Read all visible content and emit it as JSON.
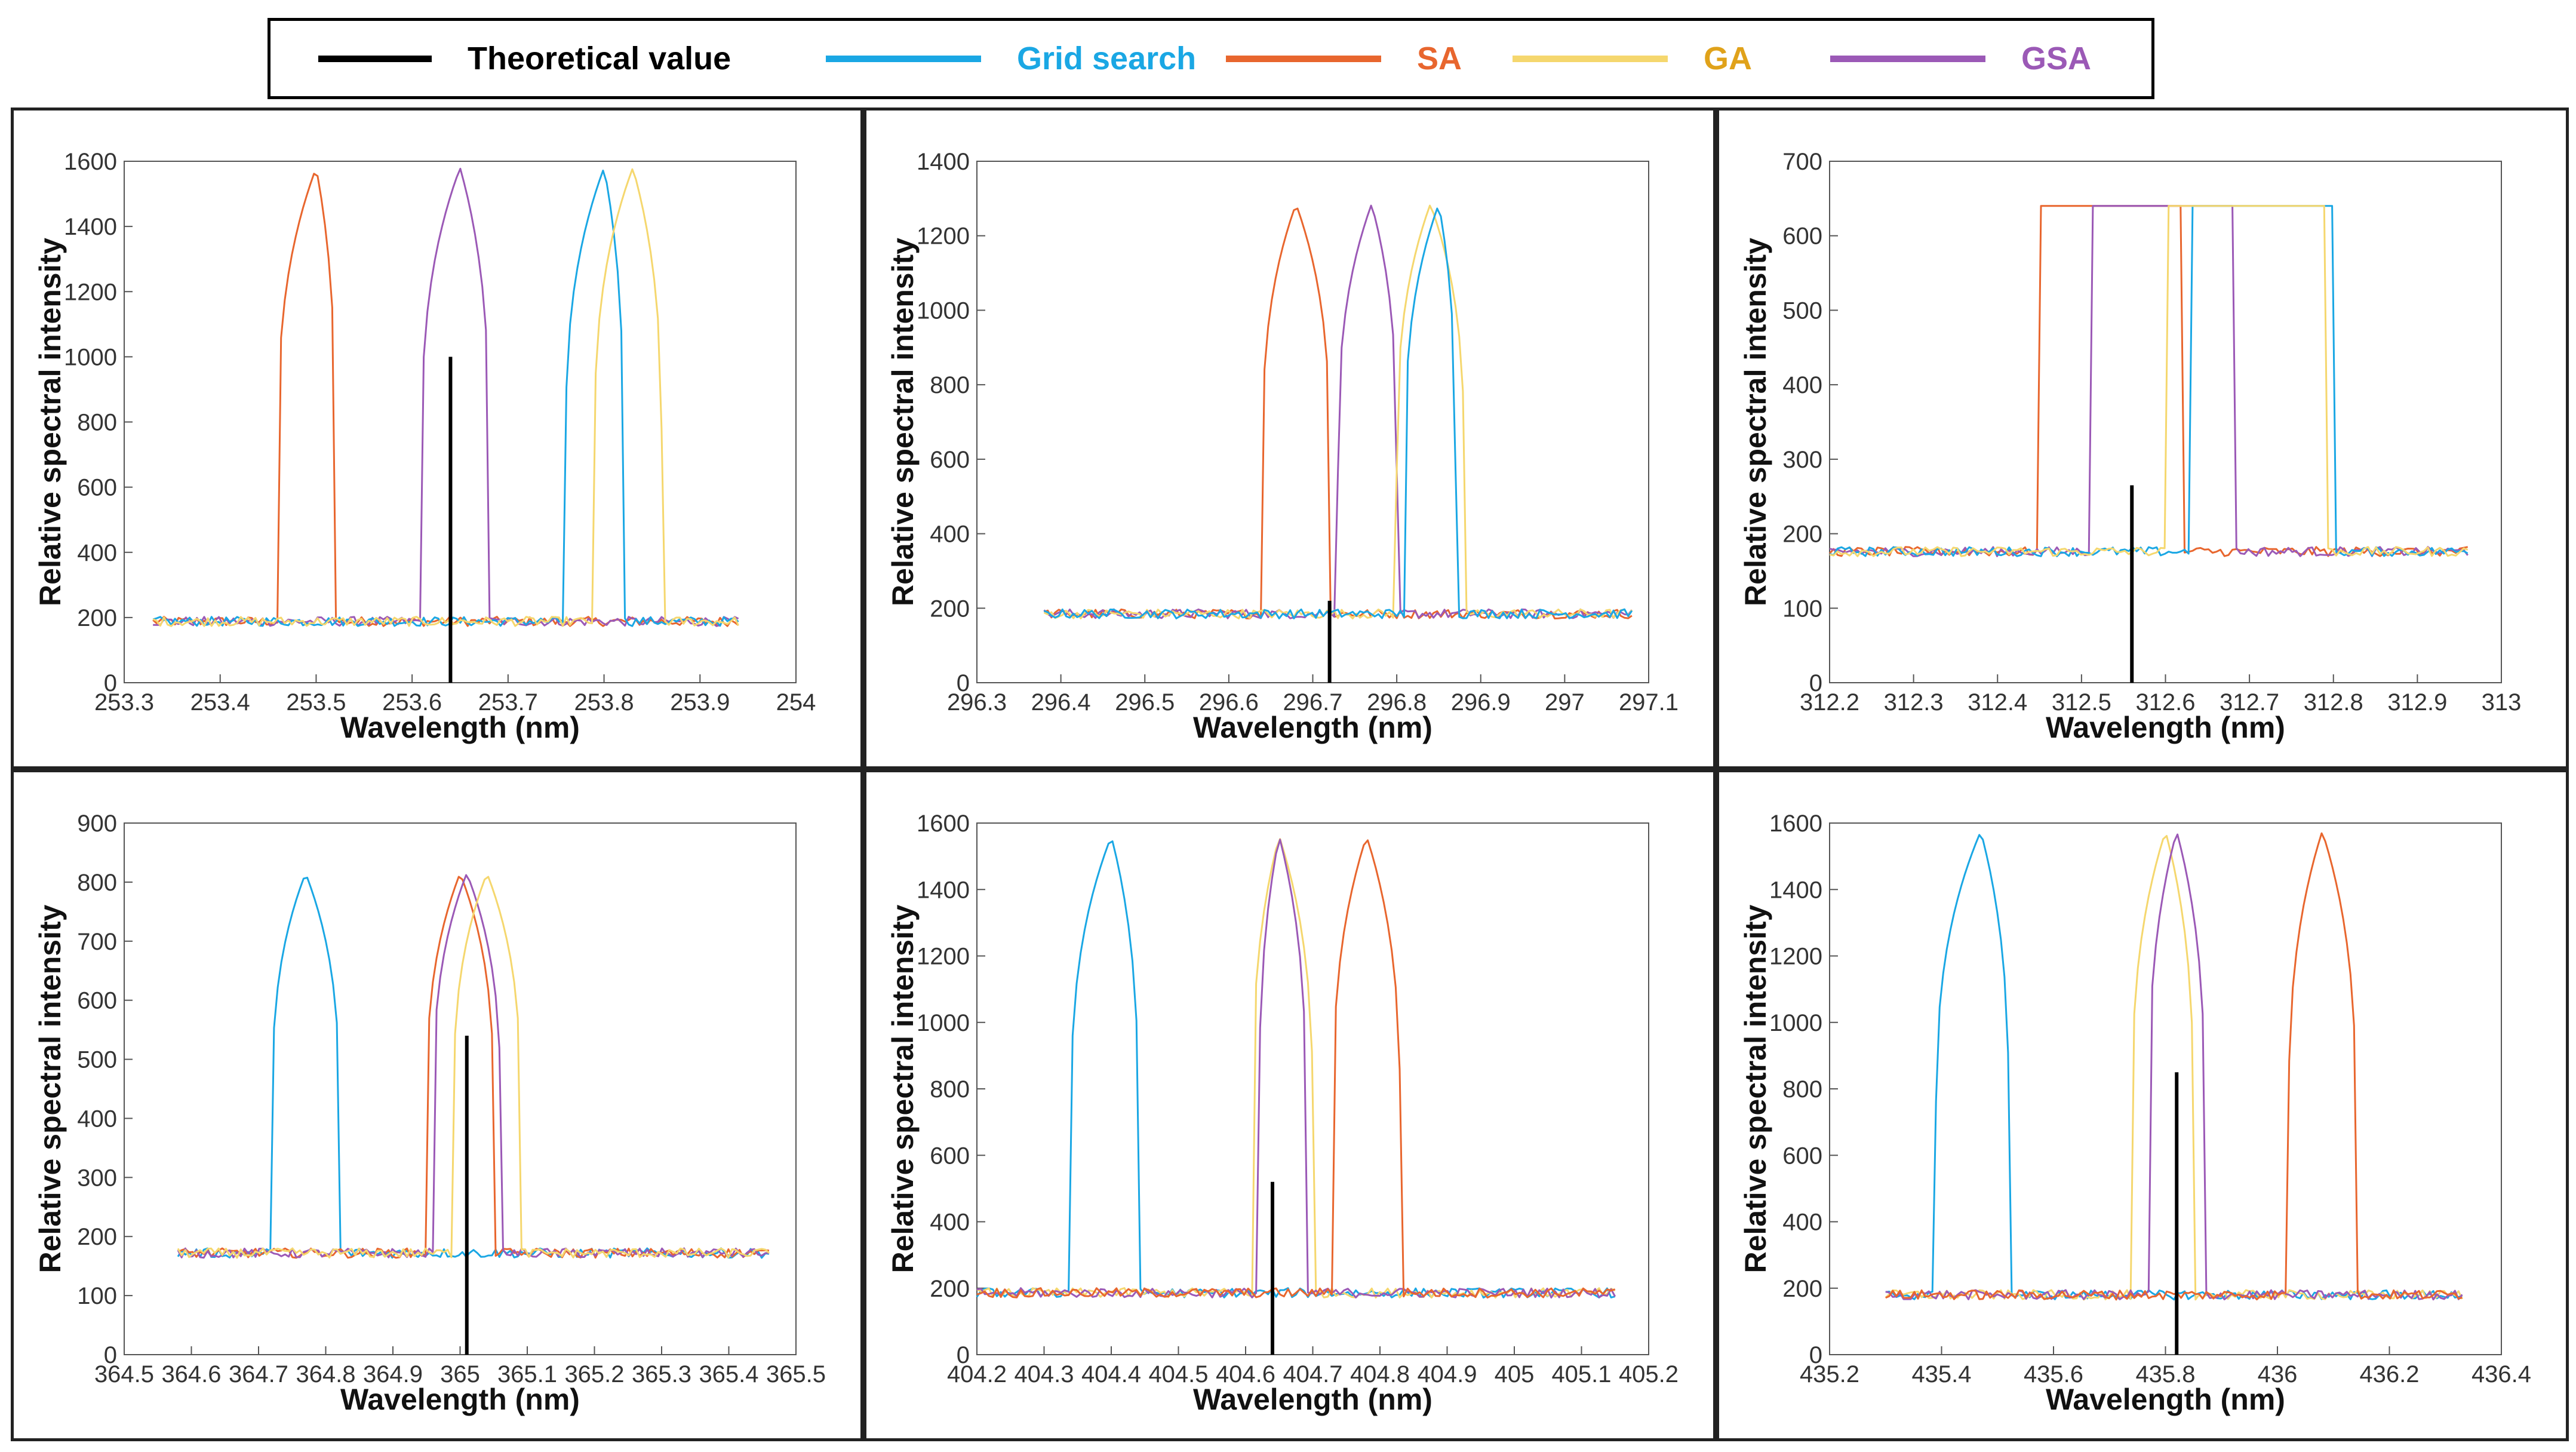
{
  "legend": {
    "items": [
      {
        "label": "Theoretical value",
        "color": "#000000",
        "text_color": "#000000"
      },
      {
        "label": "Grid search",
        "color": "#1aa7e4",
        "text_color": "#1aa7e4"
      },
      {
        "label": "SA",
        "color": "#e8662e",
        "text_color": "#e8662e"
      },
      {
        "label": "GA",
        "color": "#f5d76e",
        "text_color": "#e0a21a"
      },
      {
        "label": "GSA",
        "color": "#9b59b6",
        "text_color": "#9b59b6"
      }
    ]
  },
  "chart_data": [
    {
      "type": "line",
      "xlabel": "Wavelength (nm)",
      "ylabel": "Relative spectral intensity",
      "xlim": [
        253.3,
        254
      ],
      "xticks": [
        253.3,
        253.4,
        253.5,
        253.6,
        253.7,
        253.8,
        253.9,
        254
      ],
      "ylim": [
        0,
        1600
      ],
      "yticks": [
        0,
        200,
        400,
        600,
        800,
        1000,
        1200,
        1400,
        1600
      ],
      "baseline": 188,
      "data_range": [
        253.33,
        253.94
      ],
      "theoretical": {
        "x": 253.64,
        "y": 1000
      },
      "series": [
        {
          "name": "SA",
          "center": 253.5,
          "peak": 1580,
          "start": 253.46,
          "end": 253.52
        },
        {
          "name": "GSA",
          "center": 253.65,
          "peak": 1580,
          "start": 253.61,
          "end": 253.68
        },
        {
          "name": "Grid search",
          "center": 253.8,
          "peak": 1580,
          "start": 253.76,
          "end": 253.82
        },
        {
          "name": "GA",
          "center": 253.83,
          "peak": 1580,
          "start": 253.79,
          "end": 253.86
        }
      ]
    },
    {
      "type": "line",
      "xlabel": "Wavelength (nm)",
      "ylabel": "Relative spectral intensity",
      "xlim": [
        296.3,
        297.1
      ],
      "xticks": [
        296.3,
        296.4,
        296.5,
        296.6,
        296.7,
        296.8,
        296.9,
        297,
        297.1
      ],
      "ylim": [
        0,
        1400
      ],
      "yticks": [
        0,
        200,
        400,
        600,
        800,
        1000,
        1200,
        1400
      ],
      "baseline": 185,
      "data_range": [
        296.38,
        297.08
      ],
      "theoretical": {
        "x": 296.72,
        "y": 220
      },
      "series": [
        {
          "name": "SA",
          "center": 296.68,
          "peak": 1285,
          "start": 296.64,
          "end": 296.72
        },
        {
          "name": "GSA",
          "center": 296.77,
          "peak": 1285,
          "start": 296.73,
          "end": 296.8
        },
        {
          "name": "GA",
          "center": 296.84,
          "peak": 1285,
          "start": 296.8,
          "end": 296.88
        },
        {
          "name": "Grid search",
          "center": 296.85,
          "peak": 1285,
          "start": 296.81,
          "end": 296.87
        }
      ]
    },
    {
      "type": "line",
      "xlabel": "Wavelength (nm)",
      "ylabel": "Relative spectral intensity",
      "xlim": [
        312.2,
        313
      ],
      "xticks": [
        312.2,
        312.3,
        312.4,
        312.5,
        312.6,
        312.7,
        312.8,
        312.9,
        313
      ],
      "ylim": [
        0,
        700
      ],
      "yticks": [
        0,
        100,
        200,
        300,
        400,
        500,
        600,
        700
      ],
      "baseline": 176,
      "data_range": [
        312.2,
        312.96
      ],
      "theoretical": {
        "x": 312.56,
        "y": 265
      },
      "series": [
        {
          "name": "SA",
          "shape": "box",
          "peak": 640,
          "start": 312.45,
          "end": 312.62
        },
        {
          "name": "GSA",
          "shape": "box",
          "peak": 640,
          "start": 312.51,
          "end": 312.68
        },
        {
          "name": "Grid search",
          "shape": "box",
          "peak": 640,
          "start": 312.63,
          "end": 312.8
        },
        {
          "name": "GA",
          "shape": "box",
          "peak": 640,
          "start": 312.6,
          "end": 312.79
        }
      ]
    },
    {
      "type": "line",
      "xlabel": "Wavelength (nm)",
      "ylabel": "Relative spectral intensity",
      "xlim": [
        364.5,
        365.5
      ],
      "xticks": [
        364.5,
        364.6,
        364.7,
        364.8,
        364.9,
        365,
        365.1,
        365.2,
        365.3,
        365.4,
        365.5
      ],
      "ylim": [
        0,
        900
      ],
      "yticks": [
        0,
        100,
        200,
        300,
        400,
        500,
        600,
        700,
        800,
        900
      ],
      "baseline": 172,
      "data_range": [
        364.58,
        365.46
      ],
      "theoretical": {
        "x": 365.01,
        "y": 540
      },
      "series": [
        {
          "name": "Grid search",
          "center": 364.77,
          "peak": 815,
          "start": 364.72,
          "end": 364.82
        },
        {
          "name": "SA",
          "center": 365.0,
          "peak": 815,
          "start": 364.95,
          "end": 365.05
        },
        {
          "name": "GSA",
          "center": 365.01,
          "peak": 815,
          "start": 364.96,
          "end": 365.06
        },
        {
          "name": "GA",
          "center": 365.04,
          "peak": 815,
          "start": 364.99,
          "end": 365.09
        }
      ]
    },
    {
      "type": "line",
      "xlabel": "Wavelength (nm)",
      "ylabel": "Relative spectral intensity",
      "xlim": [
        404.2,
        405.2
      ],
      "xticks": [
        404.2,
        404.3,
        404.4,
        404.5,
        404.6,
        404.7,
        404.8,
        404.9,
        405,
        405.1,
        405.2
      ],
      "ylim": [
        0,
        1600
      ],
      "yticks": [
        0,
        200,
        400,
        600,
        800,
        1000,
        1200,
        1400,
        1600
      ],
      "baseline": 186,
      "data_range": [
        404.2,
        405.15
      ],
      "theoretical": {
        "x": 404.64,
        "y": 520
      },
      "series": [
        {
          "name": "Grid search",
          "center": 404.4,
          "peak": 1560,
          "start": 404.34,
          "end": 404.44
        },
        {
          "name": "GA",
          "center": 404.65,
          "peak": 1560,
          "start": 404.61,
          "end": 404.7
        },
        {
          "name": "GSA",
          "center": 404.65,
          "peak": 1560,
          "start": 404.62,
          "end": 404.69
        },
        {
          "name": "SA",
          "center": 404.78,
          "peak": 1560,
          "start": 404.73,
          "end": 404.83
        }
      ]
    },
    {
      "type": "line",
      "xlabel": "Wavelength (nm)",
      "ylabel": "Relative spectral intensity",
      "xlim": [
        435.2,
        436.4
      ],
      "xticks": [
        435.2,
        435.4,
        435.6,
        435.8,
        436,
        436.2,
        436.4
      ],
      "ylim": [
        0,
        1600
      ],
      "yticks": [
        0,
        200,
        400,
        600,
        800,
        1000,
        1200,
        1400,
        1600
      ],
      "baseline": 180,
      "data_range": [
        435.3,
        436.33
      ],
      "theoretical": {
        "x": 435.82,
        "y": 850
      },
      "series": [
        {
          "name": "Grid search",
          "center": 435.47,
          "peak": 1575,
          "start": 435.39,
          "end": 435.52
        },
        {
          "name": "GA",
          "center": 435.8,
          "peak": 1575,
          "start": 435.74,
          "end": 435.85
        },
        {
          "name": "GSA",
          "center": 435.82,
          "peak": 1575,
          "start": 435.77,
          "end": 435.87
        },
        {
          "name": "SA",
          "center": 436.08,
          "peak": 1575,
          "start": 436.02,
          "end": 436.14
        }
      ]
    }
  ]
}
